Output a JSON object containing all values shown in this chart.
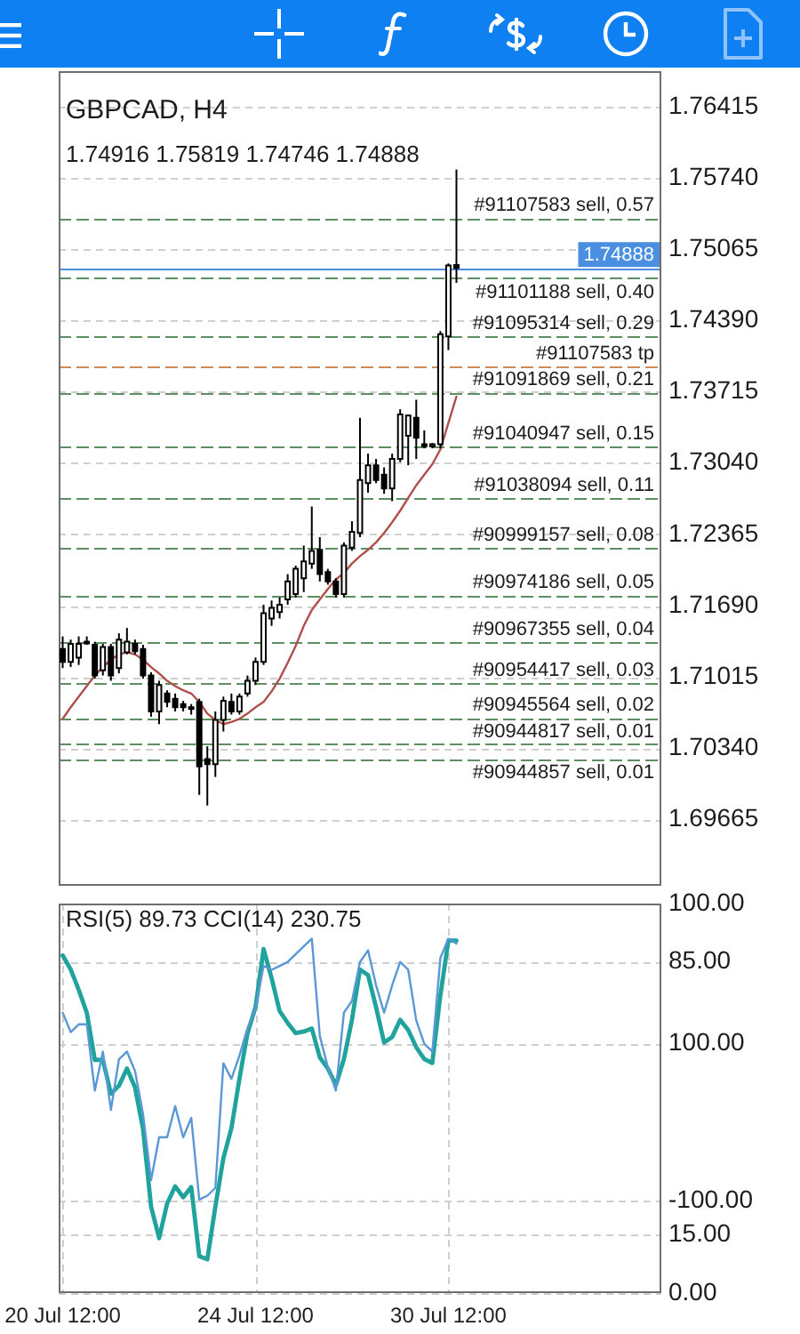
{
  "chart_data": [
    {
      "type": "candlestick",
      "title": "GBPCAD, H4",
      "subtitle": "1.74916 1.75819 1.74746 1.74888",
      "categories": [
        null,
        null,
        null,
        null,
        null,
        null,
        null,
        null,
        null,
        null,
        null,
        null,
        null,
        null,
        null,
        null,
        null,
        null,
        null,
        null,
        null,
        null,
        null,
        null,
        null,
        null,
        null,
        null,
        null,
        null,
        null,
        null,
        null,
        null,
        null,
        null,
        null,
        null,
        null,
        null,
        null,
        null,
        null,
        null,
        null,
        null,
        null,
        null,
        null,
        null,
        null,
        null,
        null,
        null,
        null,
        null,
        null,
        null,
        null,
        null,
        null,
        null,
        null,
        null,
        null,
        null,
        null,
        null,
        null,
        null,
        null,
        null,
        null,
        null,
        null
      ],
      "ohlc": [
        [
          1.7128,
          1.714,
          1.711,
          1.7116
        ],
        [
          1.7116,
          1.7137,
          1.7111,
          1.7133
        ],
        [
          1.712,
          1.714,
          1.7113,
          1.7133
        ],
        [
          1.7135,
          1.714,
          1.7132,
          1.7134
        ],
        [
          1.7132,
          1.7135,
          1.71,
          1.7103
        ],
        [
          1.7108,
          1.7133,
          1.7103,
          1.713
        ],
        [
          1.713,
          1.7133,
          1.7098,
          1.7103
        ],
        [
          1.711,
          1.7143,
          1.7105,
          1.7137
        ],
        [
          1.7125,
          1.7148,
          1.7123,
          1.7135
        ],
        [
          1.7133,
          1.7137,
          1.7123,
          1.7126
        ],
        [
          1.7128,
          1.7132,
          1.71,
          1.7103
        ],
        [
          1.7103,
          1.7106,
          1.7064,
          1.7069
        ],
        [
          1.7069,
          1.7098,
          1.7057,
          1.7094
        ],
        [
          1.7086,
          1.7089,
          1.7073,
          1.7078
        ],
        [
          1.7081,
          1.7086,
          1.7069,
          1.7073
        ],
        [
          1.7076,
          1.7079,
          1.7069,
          1.7073
        ],
        [
          1.7073,
          1.7076,
          1.7066,
          1.7072
        ],
        [
          1.7078,
          1.7081,
          1.699,
          1.7017
        ],
        [
          1.7024,
          1.7036,
          1.698,
          1.7019
        ],
        [
          1.7019,
          1.7069,
          1.7007,
          1.7061
        ],
        [
          1.7061,
          1.7083,
          1.705,
          1.7079
        ],
        [
          1.7078,
          1.7086,
          1.7066,
          1.7069
        ],
        [
          1.7069,
          1.7086,
          1.7066,
          1.7083
        ],
        [
          1.7086,
          1.7103,
          1.7083,
          1.7098
        ],
        [
          1.7098,
          1.712,
          1.7094,
          1.7116
        ],
        [
          1.7116,
          1.717,
          1.7113,
          1.7162
        ],
        [
          1.7157,
          1.7174,
          1.715,
          1.7167
        ],
        [
          1.7163,
          1.7177,
          1.7157,
          1.717
        ],
        [
          1.7175,
          1.7199,
          1.717,
          1.7192
        ],
        [
          1.718,
          1.7207,
          1.7177,
          1.7204
        ],
        [
          1.7195,
          1.7226,
          1.7182,
          1.7211
        ],
        [
          1.7209,
          1.7263,
          1.7204,
          1.7221
        ],
        [
          1.7222,
          1.7234,
          1.7192,
          1.7199
        ],
        [
          1.7201,
          1.7204,
          1.7189,
          1.7192
        ],
        [
          1.7192,
          1.7195,
          1.7177,
          1.718
        ],
        [
          1.718,
          1.7229,
          1.7177,
          1.7226
        ],
        [
          1.7224,
          1.7249,
          1.7221,
          1.7239
        ],
        [
          1.7238,
          1.7347,
          1.7234,
          1.7288
        ],
        [
          1.7285,
          1.7313,
          1.7276,
          1.7302
        ],
        [
          1.7302,
          1.7308,
          1.7285,
          1.7288
        ],
        [
          1.7293,
          1.73,
          1.7275,
          1.728
        ],
        [
          1.728,
          1.7313,
          1.7268,
          1.7308
        ],
        [
          1.7308,
          1.7355,
          1.7305,
          1.735
        ],
        [
          1.733,
          1.735,
          1.7302,
          1.7349
        ],
        [
          1.7347,
          1.7364,
          1.7308,
          1.7328
        ],
        [
          1.7322,
          1.7335,
          1.7318,
          1.732
        ],
        [
          1.732,
          1.7323,
          1.7318,
          1.7322
        ],
        [
          1.7322,
          1.7429,
          1.7318,
          1.7426
        ],
        [
          1.7424,
          1.7493,
          1.7411,
          1.7491
        ],
        [
          1.74916,
          1.75819,
          1.74746,
          1.74888
        ],
        null,
        null,
        null,
        null,
        null,
        null,
        null,
        null,
        null,
        null,
        null,
        null,
        null,
        null,
        null,
        null,
        null,
        null,
        null,
        null,
        null,
        null,
        null,
        null,
        null
      ],
      "series": [
        {
          "type": "line",
          "color": "#b0504a",
          "values": [
            1.7062,
            1.7073,
            1.7083,
            1.7093,
            1.7103,
            1.7111,
            1.7118,
            1.7123,
            1.7125,
            1.7123,
            1.7118,
            1.7111,
            1.7105,
            1.7098,
            1.7093,
            1.7089,
            1.7086,
            1.7078,
            1.7067,
            1.7061,
            1.7057,
            1.7059,
            1.7062,
            1.7067,
            1.7073,
            1.7078,
            1.7088,
            1.71,
            1.7115,
            1.7131,
            1.715,
            1.7165,
            1.7175,
            1.7185,
            1.7194,
            1.72,
            1.7209,
            1.7216,
            1.7222,
            1.7229,
            1.7238,
            1.7248,
            1.7259,
            1.7271,
            1.7283,
            1.7293,
            1.7303,
            1.7317,
            1.7342,
            1.7367,
            null,
            null,
            null,
            null,
            null,
            null,
            null,
            null,
            null,
            null,
            null,
            null,
            null,
            null,
            null,
            null,
            null,
            null,
            null,
            null,
            null,
            null,
            null,
            null,
            null
          ]
        }
      ],
      "ylim": [
        1.6904,
        1.7675
      ],
      "yticks": [
        1.69665,
        {
          "value": 1.7034,
          "label": "1.70340"
        },
        1.71015,
        {
          "value": 1.7169,
          "label": "1.71690"
        },
        1.72365,
        {
          "value": 1.7304,
          "label": "1.73040"
        },
        1.73715,
        {
          "value": 1.7439,
          "label": "1.74390"
        },
        1.75065,
        {
          "value": 1.7574,
          "label": "1.75740"
        },
        1.76415
      ],
      "ref_lines": [
        {
          "axis": "y",
          "value": 1.7536,
          "label": "#91107583 sell, 0.57",
          "color": "#5e8f5e",
          "line_style": "dashed"
        },
        {
          "axis": "y",
          "value": 1.74888,
          "label": "1.74888",
          "color": "#4a8fe0",
          "line_style": "solid"
        },
        {
          "axis": "y",
          "value": 1.7479,
          "label": "#91101188 sell, 0.40",
          "color": "#5e8f5e",
          "line_style": "dashed"
        },
        {
          "axis": "y",
          "value": 1.7424,
          "label": "#91095314 sell, 0.29",
          "color": "#5e8f5e",
          "line_style": "dashed"
        },
        {
          "axis": "y",
          "value": 1.7396,
          "label": "#91107583 tp",
          "color": "#d08a5a",
          "line_style": "dashed"
        },
        {
          "axis": "y",
          "value": 1.7371,
          "label": "#91091869 sell, 0.21",
          "color": "#5e8f5e",
          "line_style": "dashed"
        },
        {
          "axis": "y",
          "value": 1.732,
          "label": "#91040947 sell, 0.15",
          "color": "#5e8f5e",
          "line_style": "dashed"
        },
        {
          "axis": "y",
          "value": 1.7271,
          "label": "#91038094 sell, 0.11",
          "color": "#5e8f5e",
          "line_style": "dashed"
        },
        {
          "axis": "y",
          "value": 1.7224,
          "label": "#90999157 sell, 0.08",
          "color": "#5e8f5e",
          "line_style": "dashed"
        },
        {
          "axis": "y",
          "value": 1.7179,
          "label": "#90974186 sell, 0.05",
          "color": "#5e8f5e",
          "line_style": "dashed"
        },
        {
          "axis": "y",
          "value": 1.7135,
          "label": "#90967355 sell, 0.04",
          "color": "#5e8f5e",
          "line_style": "dashed"
        },
        {
          "axis": "y",
          "value": 1.7096,
          "label": "#90954417 sell, 0.03",
          "color": "#5e8f5e",
          "line_style": "dashed"
        },
        {
          "axis": "y",
          "value": 1.7063,
          "label": "#90945564 sell, 0.02",
          "color": "#5e8f5e",
          "line_style": "dashed"
        },
        {
          "axis": "y",
          "value": 1.7038,
          "label": "#90944817 sell, 0.01",
          "color": "#5e8f5e",
          "line_style": "dashed"
        },
        {
          "axis": "y",
          "value": 1.7024,
          "label": "#90944857 sell, 0.01",
          "color": "#5e8f5e",
          "line_style": "dashed"
        }
      ],
      "grid": "y",
      "tick_labels": "y"
    },
    {
      "type": "line",
      "title": "RSI(5) 89.73 CCI(14) 230.75",
      "categories": [
        "20 Jul 12:00",
        null,
        null,
        null,
        null,
        null,
        null,
        null,
        null,
        null,
        null,
        null,
        null,
        null,
        null,
        null,
        null,
        null,
        null,
        null,
        null,
        null,
        null,
        null,
        "24 Jul 12:00",
        null,
        null,
        null,
        null,
        null,
        null,
        null,
        null,
        null,
        null,
        null,
        null,
        null,
        null,
        null,
        null,
        null,
        null,
        null,
        null,
        null,
        null,
        null,
        "30 Jul 12:00",
        null,
        null,
        null,
        null,
        null,
        null,
        null,
        null,
        null,
        null,
        null,
        null,
        null,
        null,
        null,
        null,
        null,
        null,
        null,
        null,
        null,
        null,
        null,
        null,
        null,
        null
      ],
      "series": [
        {
          "color": "#5a97d6",
          "values": [
            72,
            67,
            69,
            69,
            52,
            62,
            47,
            60,
            62,
            57,
            46,
            29,
            40,
            40,
            48,
            40,
            45,
            24,
            25,
            27,
            59,
            55,
            61,
            68,
            73,
            84,
            83,
            84,
            85,
            87,
            89,
            91,
            66,
            58,
            52,
            72,
            75,
            85,
            88,
            79,
            72,
            79,
            85,
            83,
            70,
            64,
            62,
            86,
            91,
            89.73,
            null,
            null,
            null,
            null,
            null,
            null,
            null,
            null,
            null,
            null,
            null,
            null,
            null,
            null,
            null,
            null,
            null,
            null,
            null,
            null,
            null,
            null,
            null,
            null,
            null
          ]
        },
        {
          "color": "#1fa39c",
          "axis": "y2",
          "values": [
            212,
            194,
            168,
            139,
            79,
            79,
            36,
            46,
            68,
            44,
            -9,
            -108,
            -148,
            -104,
            -82,
            -96,
            -83,
            -171,
            -175,
            -108,
            -46,
            -8,
            55,
            113,
            146,
            220,
            183,
            141,
            126,
            113,
            115,
            119,
            82,
            68,
            47,
            80,
            130,
            194,
            187,
            146,
            101,
            108,
            130,
            117,
            95,
            80,
            75,
            161,
            231,
            230.75,
            null,
            null,
            null,
            null,
            null,
            null,
            null,
            null,
            null,
            null,
            null,
            null,
            null,
            null,
            null,
            null,
            null,
            null,
            null,
            null,
            null,
            null,
            null,
            null,
            null
          ]
        }
      ],
      "ylim": [
        0,
        100
      ],
      "yticks": [
        {
          "value": 0,
          "label": "0.00"
        },
        {
          "value": 15,
          "label": "15.00"
        },
        {
          "value": 85,
          "label": "85.00"
        },
        {
          "value": 100,
          "label": "100.00"
        }
      ],
      "y2lim": [
        -218,
        278
      ],
      "y2ticks": [
        {
          "value": -100,
          "label": "-100.00"
        },
        {
          "value": 100,
          "label": "100.00"
        }
      ],
      "grid": true
    }
  ]
}
